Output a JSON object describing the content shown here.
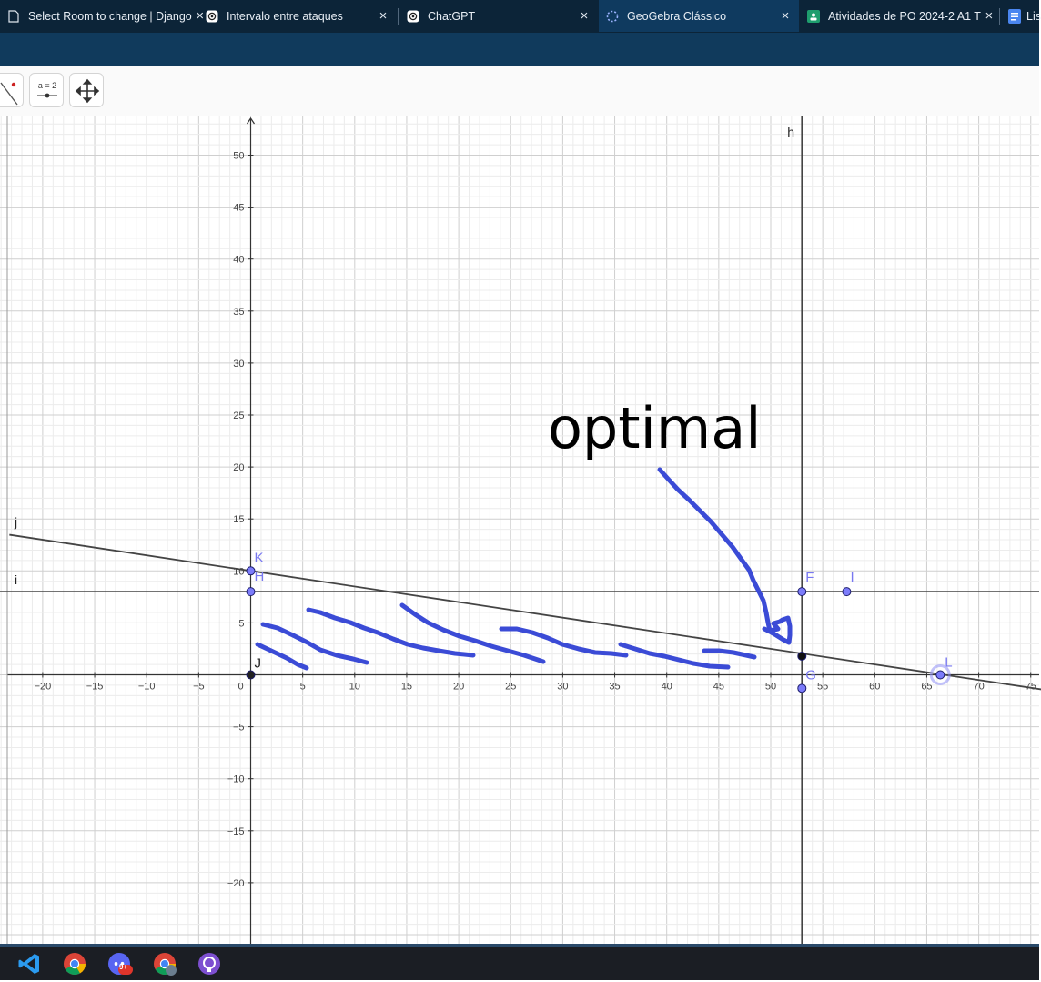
{
  "browser": {
    "tabs": [
      {
        "title": "Select Room to change | Django",
        "favicon": "page-icon",
        "active": false
      },
      {
        "title": "Intervalo entre ataques",
        "favicon": "chatgpt-icon",
        "active": false
      },
      {
        "title": "ChatGPT",
        "favicon": "chatgpt-icon",
        "active": false
      },
      {
        "title": "GeoGebra Clássico",
        "favicon": "loading-spinner-icon",
        "active": true
      },
      {
        "title": "Atividades de PO 2024-2 A1 T",
        "favicon": "classroom-icon",
        "active": false
      },
      {
        "title": "Lis",
        "favicon": "docs-icon",
        "active": false
      }
    ],
    "close_glyph": "×"
  },
  "toolbar": {
    "tools": [
      {
        "name": "line-tool",
        "icon": "line-tool-icon"
      },
      {
        "name": "slider-tool",
        "icon": "slider-icon",
        "label": "a = 2"
      },
      {
        "name": "move-view-tool",
        "icon": "move-arrows-icon"
      }
    ]
  },
  "graphics": {
    "x_ticks": [
      -20,
      -15,
      -10,
      -5,
      0,
      5,
      10,
      15,
      20,
      25,
      30,
      35,
      40,
      45,
      50,
      55,
      60,
      65,
      70,
      75
    ],
    "y_ticks": [
      -20,
      -15,
      -10,
      -5,
      5,
      10,
      15,
      20,
      25,
      30,
      35,
      40,
      45,
      50
    ],
    "x_tick_labels": [
      "−20",
      "−15",
      "−10",
      "−5",
      "0",
      "5",
      "10",
      "15",
      "20",
      "25",
      "30",
      "35",
      "40",
      "45",
      "50",
      "55",
      "60",
      "65",
      "70",
      "75"
    ],
    "y_tick_labels": [
      "−20",
      "−15",
      "−10",
      "−5",
      "5",
      "10",
      "15",
      "20",
      "25",
      "30",
      "35",
      "40",
      "45",
      "50"
    ],
    "lines": [
      {
        "label": "h",
        "type": "vertical",
        "x": 53
      },
      {
        "label": "i",
        "type": "horizontal",
        "y": 8
      },
      {
        "label": "j",
        "type": "through",
        "p1": [
          0,
          10
        ],
        "p2": [
          66.67,
          0
        ]
      }
    ],
    "points": [
      {
        "label": "K",
        "x": 0,
        "y": 10,
        "color": "#7c7cfa"
      },
      {
        "label": "H",
        "x": 0,
        "y": 8,
        "color": "#7c7cfa"
      },
      {
        "label": "J",
        "x": 0,
        "y": 0,
        "color": "#222222"
      },
      {
        "label": "F",
        "x": 53,
        "y": 8,
        "color": "#7c7cfa"
      },
      {
        "label": "I",
        "x": 57.3,
        "y": 8,
        "color": "#7c7cfa"
      },
      {
        "label": "",
        "x": 53,
        "y": 1.8,
        "color": "#111111"
      },
      {
        "label": "G",
        "x": 53,
        "y": -1.3,
        "color": "#7c7cfa"
      },
      {
        "label": "L",
        "x": 66.3,
        "y": 0,
        "color": "#7c7cfa",
        "selected": true
      }
    ],
    "annotation_text": "optimal",
    "colors": {
      "ink": "#3b4bd6",
      "grid_minor": "#ececec",
      "grid_major": "#cfcfcf",
      "axis": "#333333",
      "line": "#444444"
    }
  },
  "taskbar": {
    "icons": [
      "vscode-icon",
      "chrome-icon",
      "discord-icon",
      "chrome-profile-icon",
      "github-desktop-icon"
    ],
    "discord_badge": "9+"
  }
}
